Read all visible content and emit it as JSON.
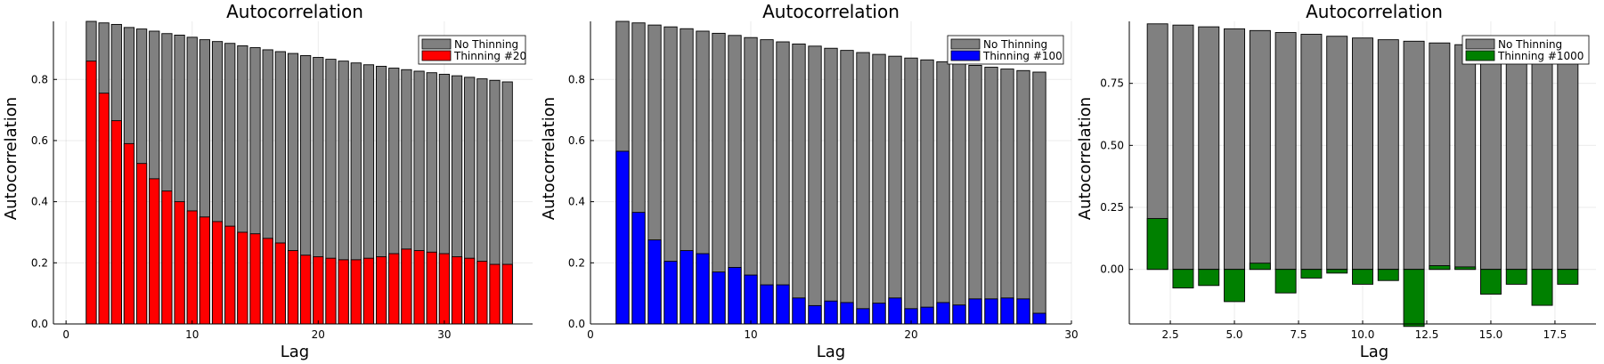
{
  "chart_data": [
    {
      "type": "bar",
      "title": "Autocorrelation",
      "xlabel": "Lag",
      "ylabel": "Autocorrelation",
      "xlim": [
        -1,
        37
      ],
      "ylim": [
        0,
        0.99
      ],
      "xticks": [
        0,
        10,
        20,
        30
      ],
      "xtick_labels": [
        "0",
        "10",
        "20",
        "30"
      ],
      "yticks": [
        0.0,
        0.2,
        0.4,
        0.6,
        0.8
      ],
      "ytick_labels": [
        "0.0",
        "0.2",
        "0.4",
        "0.6",
        "0.8"
      ],
      "grid": true,
      "legend_position": "top-right",
      "x": [
        2,
        3,
        4,
        5,
        6,
        7,
        8,
        9,
        10,
        11,
        12,
        13,
        14,
        15,
        16,
        17,
        18,
        19,
        20,
        21,
        22,
        23,
        24,
        25,
        26,
        27,
        28,
        29,
        30,
        31,
        32,
        33,
        34,
        35
      ],
      "series": [
        {
          "name": "No Thinning",
          "color": "#808080",
          "values": [
            0.99,
            0.985,
            0.98,
            0.97,
            0.965,
            0.958,
            0.95,
            0.945,
            0.938,
            0.93,
            0.924,
            0.918,
            0.91,
            0.904,
            0.897,
            0.891,
            0.885,
            0.878,
            0.872,
            0.866,
            0.86,
            0.854,
            0.848,
            0.843,
            0.837,
            0.832,
            0.827,
            0.822,
            0.817,
            0.812,
            0.807,
            0.802,
            0.797,
            0.792
          ]
        },
        {
          "name": "Thinning #20",
          "color": "#ff0000",
          "values": [
            0.86,
            0.755,
            0.665,
            0.59,
            0.525,
            0.475,
            0.435,
            0.4,
            0.37,
            0.35,
            0.335,
            0.32,
            0.3,
            0.295,
            0.28,
            0.265,
            0.24,
            0.225,
            0.22,
            0.215,
            0.21,
            0.21,
            0.215,
            0.22,
            0.23,
            0.245,
            0.24,
            0.235,
            0.23,
            0.22,
            0.215,
            0.205,
            0.195,
            0.195
          ]
        }
      ]
    },
    {
      "type": "bar",
      "title": "Autocorrelation",
      "xlabel": "Lag",
      "ylabel": "Autocorrelation",
      "xlim": [
        0,
        30
      ],
      "ylim": [
        0,
        0.99
      ],
      "xticks": [
        0,
        10,
        20,
        30
      ],
      "xtick_labels": [
        "0",
        "10",
        "20",
        "30"
      ],
      "yticks": [
        0.0,
        0.2,
        0.4,
        0.6,
        0.8
      ],
      "ytick_labels": [
        "0.0",
        "0.2",
        "0.4",
        "0.6",
        "0.8"
      ],
      "grid": true,
      "legend_position": "top-right",
      "x": [
        2,
        3,
        4,
        5,
        6,
        7,
        8,
        9,
        10,
        11,
        12,
        13,
        14,
        15,
        16,
        17,
        18,
        19,
        20,
        21,
        22,
        23,
        24,
        25,
        26,
        27,
        28
      ],
      "series": [
        {
          "name": "No Thinning",
          "color": "#808080",
          "values": [
            0.99,
            0.985,
            0.978,
            0.972,
            0.966,
            0.958,
            0.951,
            0.944,
            0.937,
            0.93,
            0.923,
            0.916,
            0.909,
            0.902,
            0.895,
            0.888,
            0.882,
            0.876,
            0.87,
            0.864,
            0.858,
            0.852,
            0.846,
            0.84,
            0.834,
            0.829,
            0.824
          ]
        },
        {
          "name": "Thinning #100",
          "color": "#0000ff",
          "values": [
            0.565,
            0.365,
            0.275,
            0.205,
            0.24,
            0.23,
            0.17,
            0.185,
            0.16,
            0.128,
            0.128,
            0.085,
            0.06,
            0.075,
            0.07,
            0.05,
            0.068,
            0.085,
            0.05,
            0.055,
            0.07,
            0.062,
            0.082,
            0.082,
            0.085,
            0.082,
            0.035
          ]
        }
      ]
    },
    {
      "type": "bar",
      "title": "Autocorrelation",
      "xlabel": "Lag",
      "ylabel": "Autocorrelation",
      "xlim": [
        0.9,
        19.1
      ],
      "ylim": [
        -0.22,
        1.0
      ],
      "xticks": [
        2.5,
        5.0,
        7.5,
        10.0,
        12.5,
        15.0,
        17.5
      ],
      "xtick_labels": [
        "2.5",
        "5.0",
        "7.5",
        "10.0",
        "12.5",
        "15.0",
        "17.5"
      ],
      "yticks": [
        0.0,
        0.25,
        0.5,
        0.75
      ],
      "ytick_labels": [
        "0.00",
        "0.25",
        "0.50",
        "0.75"
      ],
      "grid": true,
      "legend_position": "top-right",
      "x": [
        2,
        3,
        4,
        5,
        6,
        7,
        8,
        9,
        10,
        11,
        12,
        13,
        14,
        15,
        16,
        17,
        18
      ],
      "series": [
        {
          "name": "No Thinning",
          "color": "#808080",
          "values": [
            0.99,
            0.985,
            0.978,
            0.97,
            0.963,
            0.955,
            0.948,
            0.94,
            0.933,
            0.926,
            0.92,
            0.913,
            0.906,
            0.898,
            0.89,
            0.883,
            0.876
          ]
        },
        {
          "name": "Thinning #1000",
          "color": "#008000",
          "values": [
            0.205,
            -0.075,
            -0.065,
            -0.13,
            0.025,
            -0.095,
            -0.035,
            -0.015,
            -0.06,
            -0.045,
            -0.23,
            0.015,
            0.01,
            -0.1,
            -0.06,
            -0.145,
            -0.06
          ]
        }
      ]
    }
  ]
}
